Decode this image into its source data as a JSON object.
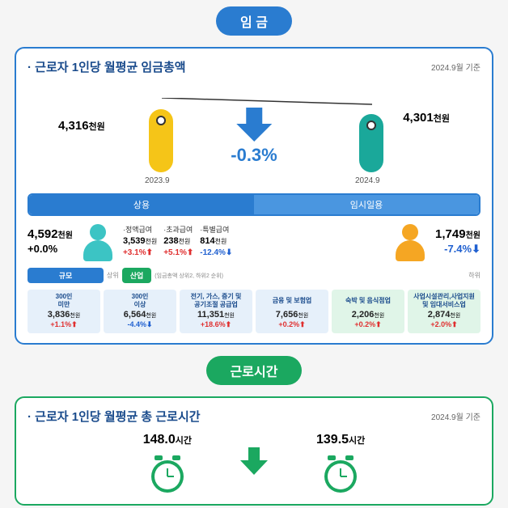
{
  "colors": {
    "wage_accent": "#2a7cd0",
    "hours_accent": "#1ba860",
    "yellow_pill": "#f5c518",
    "teal_pill": "#1aa89a",
    "teal_person": "#3cc4c4",
    "orange_person": "#f5a623",
    "light_blue_bg": "#e6f0fa",
    "light_green_bg": "#e0f5e8",
    "up": "#e03030",
    "down": "#2060d0"
  },
  "section1": {
    "badge": "임 금",
    "title": "· 근로자 1인당 월평균 임금총액",
    "ref": "2024.9월 기준",
    "left": {
      "value": "4,316",
      "unit": "천원",
      "date": "2023.9"
    },
    "right": {
      "value": "4,301",
      "unit": "천원",
      "date": "2024.9"
    },
    "change": "-0.3%",
    "sub_headers": [
      "상용",
      "임시일용"
    ],
    "regular": {
      "value": "4,592",
      "unit": "천원",
      "pct": "+0.0%",
      "items": [
        {
          "lbl": "·정액급여",
          "v": "3,539",
          "u": "천원",
          "p": "+3.1%",
          "dir": "up"
        },
        {
          "lbl": "·초과급여",
          "v": "238",
          "u": "천원",
          "p": "+5.1%",
          "dir": "up"
        },
        {
          "lbl": "·특별급여",
          "v": "814",
          "u": "천원",
          "p": "-12.4%",
          "dir": "down"
        }
      ]
    },
    "temp": {
      "value": "1,749",
      "unit": "천원",
      "pct": "-7.4%",
      "dir": "down"
    },
    "scale_header": "규모",
    "industry_header": "산업",
    "industry_note": "(임금총액 상위2, 하위2 순위)",
    "industry_sub_l": "상위",
    "industry_sub_r": "하위",
    "grid": [
      {
        "t": "300인\n미만",
        "v": "3,836",
        "u": "천원",
        "p": "+1.1%",
        "dir": "up",
        "bg": "light_blue_bg"
      },
      {
        "t": "300인\n이상",
        "v": "6,564",
        "u": "천원",
        "p": "-4.4%",
        "dir": "down",
        "bg": "light_blue_bg"
      },
      {
        "t": "전기, 가스, 증기 및\n공기조절 공급업",
        "v": "11,351",
        "u": "천원",
        "p": "+18.6%",
        "dir": "up",
        "bg": "light_blue_bg"
      },
      {
        "t": "금융 및 보험업",
        "v": "7,656",
        "u": "천원",
        "p": "+0.2%",
        "dir": "up",
        "bg": "light_blue_bg"
      },
      {
        "t": "숙박 및 음식점업",
        "v": "2,206",
        "u": "천원",
        "p": "+0.2%",
        "dir": "up",
        "bg": "light_green_bg"
      },
      {
        "t": "사업시설관리,사업지원\n및 임대서비스업",
        "v": "2,874",
        "u": "천원",
        "p": "+2.0%",
        "dir": "up",
        "bg": "light_green_bg"
      }
    ]
  },
  "section2": {
    "badge": "근로시간",
    "title": "· 근로자 1인당 월평균 총 근로시간",
    "ref": "2024.9월 기준",
    "left": {
      "value": "148.0",
      "unit": "시간"
    },
    "right": {
      "value": "139.5",
      "unit": "시간"
    }
  }
}
